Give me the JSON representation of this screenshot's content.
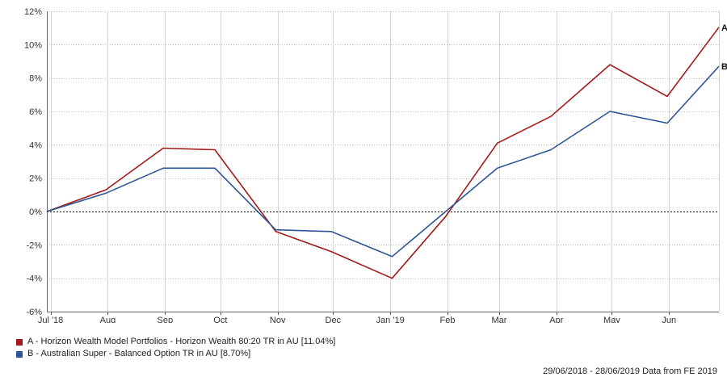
{
  "chart_data": {
    "type": "line",
    "categories": [
      "Jul '18",
      "Aug",
      "Sep",
      "Oct",
      "Nov",
      "Dec",
      "Jan '19",
      "Feb",
      "Mar",
      "Apr",
      "May",
      "Jun"
    ],
    "y_tick_labels": [
      "12%",
      "10%",
      "8%",
      "6%",
      "4%",
      "2%",
      "0%",
      "-2%",
      "-4%",
      "-6%"
    ],
    "ylim": [
      -6,
      12
    ],
    "grid": true,
    "zero_line": "dotted",
    "series": [
      {
        "name": "A",
        "legend_label": "A - Horizon Wealth Model Portfolios - Horizon Wealth 80:20 TR in AU [11.04%]",
        "color": "#a31a1a",
        "x": [
          "2018-06-29",
          "2018-07-31",
          "2018-08-31",
          "2018-09-28",
          "2018-10-31",
          "2018-11-30",
          "2019-01-02",
          "2019-01-31",
          "2019-02-28",
          "2019-03-29",
          "2019-04-30",
          "2019-05-31",
          "2019-06-28"
        ],
        "values": [
          0.0,
          1.3,
          3.8,
          3.7,
          -1.2,
          -2.4,
          -4.0,
          -0.3,
          4.1,
          5.7,
          8.8,
          6.9,
          11.04
        ]
      },
      {
        "name": "B",
        "legend_label": "B - Australian Super - Balanced Option TR in AU [8.70%]",
        "color": "#2e5596",
        "x": [
          "2018-06-29",
          "2018-07-31",
          "2018-08-31",
          "2018-09-28",
          "2018-10-31",
          "2018-11-30",
          "2019-01-02",
          "2019-01-31",
          "2019-02-28",
          "2019-03-29",
          "2019-04-30",
          "2019-05-31",
          "2019-06-28"
        ],
        "values": [
          0.0,
          1.1,
          2.6,
          2.6,
          -1.1,
          -1.2,
          -2.7,
          0.0,
          2.6,
          3.7,
          6.0,
          5.3,
          8.7
        ]
      }
    ]
  },
  "footer": "29/06/2018 - 28/06/2019 Data from FE 2019"
}
